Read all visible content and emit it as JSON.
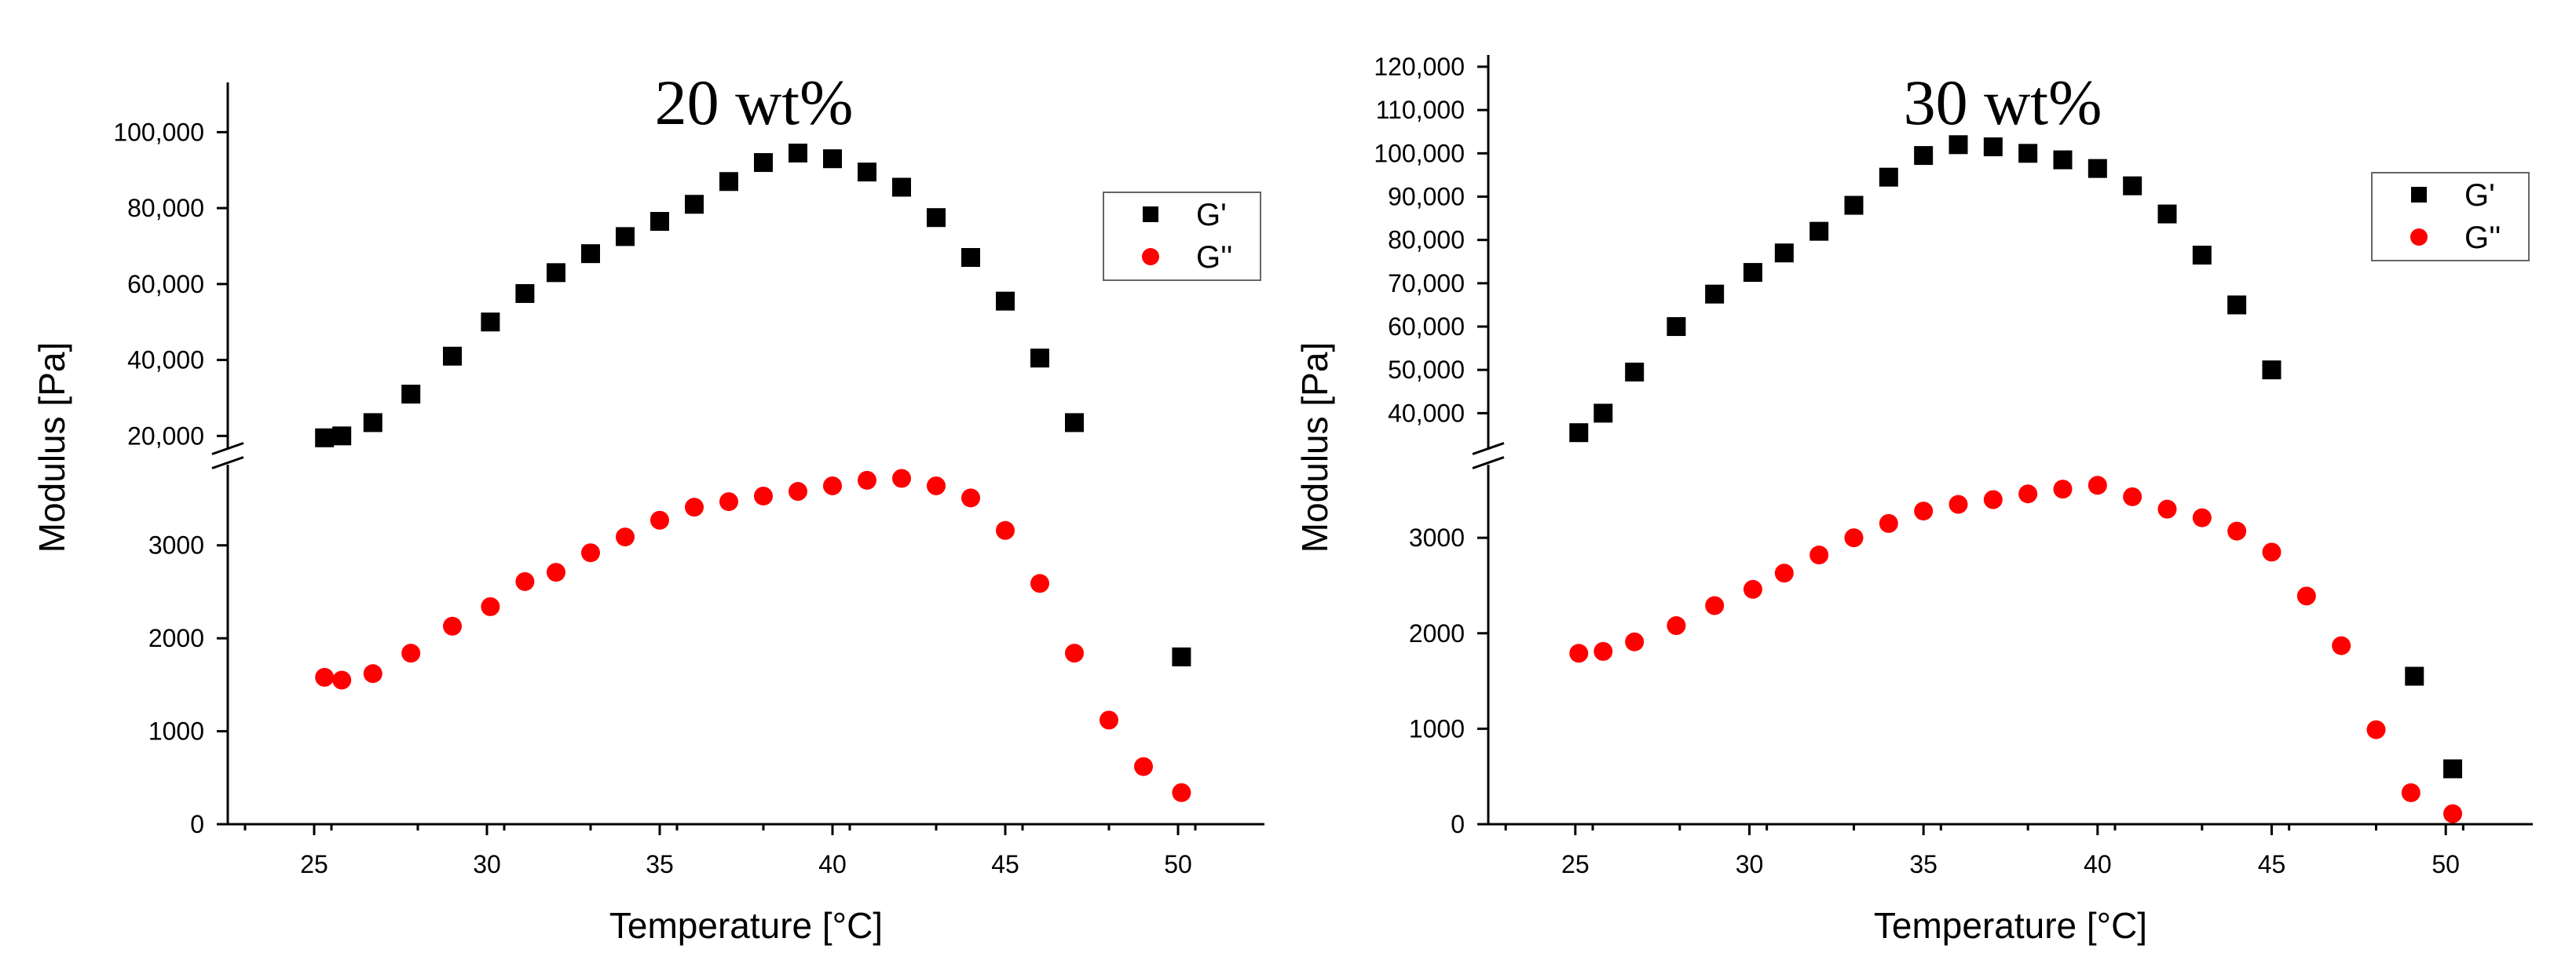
{
  "colors": {
    "g_prime": "#000000",
    "g_double_prime": "#ff0000",
    "axis": "#000000"
  },
  "chart_data": [
    {
      "type": "scatter",
      "title": "20 wt%",
      "xlabel": "Temperature [°C]",
      "ylabel": "Modulus [Pa]",
      "xlim": [
        22.5,
        52.5
      ],
      "xticks": [
        25,
        30,
        35,
        40,
        45,
        50
      ],
      "y_lower_range": [
        0,
        3800
      ],
      "y_lower_ticks": [
        0,
        1000,
        2000,
        3000
      ],
      "y_lower_tick_labels": [
        "0",
        "1000",
        "2000",
        "3000"
      ],
      "y_upper_range": [
        18000,
        110000
      ],
      "y_upper_ticks": [
        20000,
        40000,
        60000,
        80000,
        100000
      ],
      "y_upper_tick_labels": [
        "20,000",
        "40,000",
        "60,000",
        "80,000",
        "100,000"
      ],
      "legend": [
        "G'",
        "G''"
      ],
      "series": [
        {
          "name": "G'",
          "marker": "square",
          "points": [
            [
              25.3,
              19500
            ],
            [
              25.8,
              20000
            ],
            [
              26.7,
              23500
            ],
            [
              27.8,
              31000
            ],
            [
              29.0,
              41000
            ],
            [
              30.1,
              50000
            ],
            [
              31.1,
              57500
            ],
            [
              32.0,
              63000
            ],
            [
              33.0,
              68000
            ],
            [
              34.0,
              72500
            ],
            [
              35.0,
              76500
            ],
            [
              36.0,
              81000
            ],
            [
              37.0,
              87000
            ],
            [
              38.0,
              92000
            ],
            [
              39.0,
              94500
            ],
            [
              40.0,
              93000
            ],
            [
              41.0,
              89500
            ],
            [
              42.0,
              85500
            ],
            [
              43.0,
              77500
            ],
            [
              44.0,
              67000
            ],
            [
              45.0,
              55500
            ],
            [
              46.0,
              40500
            ],
            [
              47.0,
              23500
            ],
            [
              50.1,
              1800
            ]
          ]
        },
        {
          "name": "G''",
          "marker": "circle",
          "points": [
            [
              25.3,
              1580
            ],
            [
              25.8,
              1550
            ],
            [
              26.7,
              1620
            ],
            [
              27.8,
              1840
            ],
            [
              29.0,
              2130
            ],
            [
              30.1,
              2340
            ],
            [
              31.1,
              2610
            ],
            [
              32.0,
              2710
            ],
            [
              33.0,
              2920
            ],
            [
              34.0,
              3090
            ],
            [
              35.0,
              3270
            ],
            [
              36.0,
              3410
            ],
            [
              37.0,
              3470
            ],
            [
              38.0,
              3530
            ],
            [
              39.0,
              3580
            ],
            [
              40.0,
              3640
            ],
            [
              41.0,
              3700
            ],
            [
              42.0,
              3720
            ],
            [
              43.0,
              3640
            ],
            [
              44.0,
              3510
            ],
            [
              45.0,
              3160
            ],
            [
              46.0,
              2590
            ],
            [
              47.0,
              1840
            ],
            [
              48.0,
              1120
            ],
            [
              49.0,
              620
            ],
            [
              50.1,
              340
            ]
          ]
        }
      ]
    },
    {
      "type": "scatter",
      "title": "30 wt%",
      "xlabel": "Temperature [°C]",
      "ylabel": "Modulus [Pa]",
      "xlim": [
        22.5,
        52.5
      ],
      "xticks": [
        25,
        30,
        35,
        40,
        45,
        50
      ],
      "y_lower_range": [
        0,
        3700
      ],
      "y_lower_ticks": [
        0,
        1000,
        2000,
        3000
      ],
      "y_lower_tick_labels": [
        "0",
        "1000",
        "2000",
        "3000"
      ],
      "y_upper_range": [
        33000,
        120000
      ],
      "y_upper_ticks": [
        40000,
        50000,
        60000,
        70000,
        80000,
        90000,
        100000,
        110000,
        120000
      ],
      "y_upper_tick_labels": [
        "40,000",
        "50,000",
        "60,000",
        "70,000",
        "80,000",
        "90,000",
        "100,000",
        "110,000",
        "120,000"
      ],
      "legend": [
        "G'",
        "G''"
      ],
      "series": [
        {
          "name": "G'",
          "marker": "square",
          "points": [
            [
              25.1,
              35500
            ],
            [
              25.8,
              40000
            ],
            [
              26.7,
              49500
            ],
            [
              27.9,
              60000
            ],
            [
              29.0,
              67500
            ],
            [
              30.1,
              72500
            ],
            [
              31.0,
              77000
            ],
            [
              32.0,
              82000
            ],
            [
              33.0,
              88000
            ],
            [
              34.0,
              94500
            ],
            [
              35.0,
              99500
            ],
            [
              36.0,
              102000
            ],
            [
              37.0,
              101500
            ],
            [
              38.0,
              100000
            ],
            [
              39.0,
              98500
            ],
            [
              40.0,
              96500
            ],
            [
              41.0,
              92500
            ],
            [
              42.0,
              86000
            ],
            [
              43.0,
              76500
            ],
            [
              44.0,
              65000
            ],
            [
              45.0,
              50000
            ],
            [
              49.1,
              1550
            ],
            [
              50.2,
              580
            ]
          ]
        },
        {
          "name": "G''",
          "marker": "circle",
          "points": [
            [
              25.1,
              1790
            ],
            [
              25.8,
              1810
            ],
            [
              26.7,
              1910
            ],
            [
              27.9,
              2080
            ],
            [
              29.0,
              2290
            ],
            [
              30.1,
              2460
            ],
            [
              31.0,
              2630
            ],
            [
              32.0,
              2820
            ],
            [
              33.0,
              3000
            ],
            [
              34.0,
              3150
            ],
            [
              35.0,
              3280
            ],
            [
              36.0,
              3350
            ],
            [
              37.0,
              3400
            ],
            [
              38.0,
              3460
            ],
            [
              39.0,
              3510
            ],
            [
              40.0,
              3550
            ],
            [
              41.0,
              3430
            ],
            [
              42.0,
              3300
            ],
            [
              43.0,
              3210
            ],
            [
              44.0,
              3070
            ],
            [
              45.0,
              2850
            ],
            [
              46.0,
              2390
            ],
            [
              47.0,
              1870
            ],
            [
              48.0,
              990
            ],
            [
              49.0,
              330
            ],
            [
              50.2,
              110
            ]
          ]
        }
      ]
    }
  ]
}
